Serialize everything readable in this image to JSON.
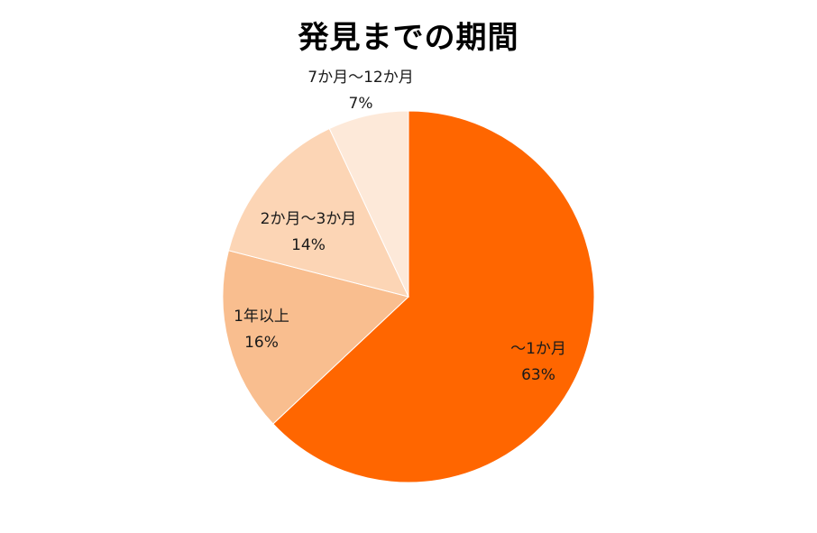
{
  "chart_data": {
    "type": "pie",
    "title": "発見までの期間",
    "start_angle": "12 o'clock",
    "direction": "clockwise",
    "slices": [
      {
        "name": "～1か月",
        "value": 63,
        "value_label": "63%",
        "color": "#FF6600"
      },
      {
        "name": "1年以上",
        "value": 16,
        "value_label": "16%",
        "color": "#F9BE8F"
      },
      {
        "name": "2か月～3か月",
        "value": 14,
        "value_label": "14%",
        "color": "#FCD5B5"
      },
      {
        "name": "7か月～12か月",
        "value": 7,
        "value_label": "7%",
        "color": "#FDE9D9"
      }
    ],
    "legend": "none"
  }
}
